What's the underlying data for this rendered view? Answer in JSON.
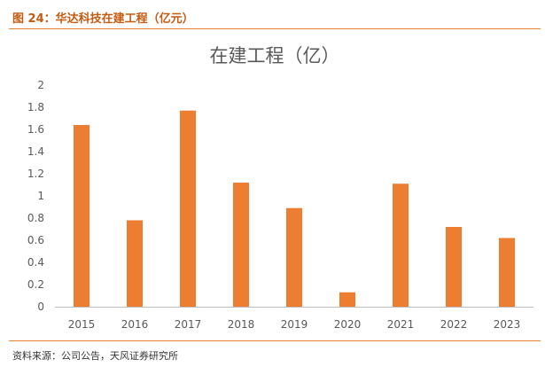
{
  "figure": {
    "caption": "图 24：华达科技在建工程（亿元）",
    "source": "资料来源：公司公告，天风证券研究所"
  },
  "colors": {
    "bar": "#ed7d31",
    "accent_line": "#e8822b",
    "caption": "#c55a11",
    "axis_text": "#595959",
    "title_text": "#595959",
    "gridline": "#d9d9d9"
  },
  "chart_data": {
    "type": "bar",
    "title": "在建工程（亿）",
    "categories": [
      "2015",
      "2016",
      "2017",
      "2018",
      "2019",
      "2020",
      "2021",
      "2022",
      "2023"
    ],
    "values": [
      1.64,
      0.78,
      1.77,
      1.12,
      0.89,
      0.13,
      1.11,
      0.72,
      0.62
    ],
    "ylim": [
      0,
      2
    ],
    "yticks": [
      "0",
      "0.2",
      "0.4",
      "0.6",
      "0.8",
      "1",
      "1.2",
      "1.4",
      "1.6",
      "1.8",
      "2"
    ],
    "grid": false
  }
}
